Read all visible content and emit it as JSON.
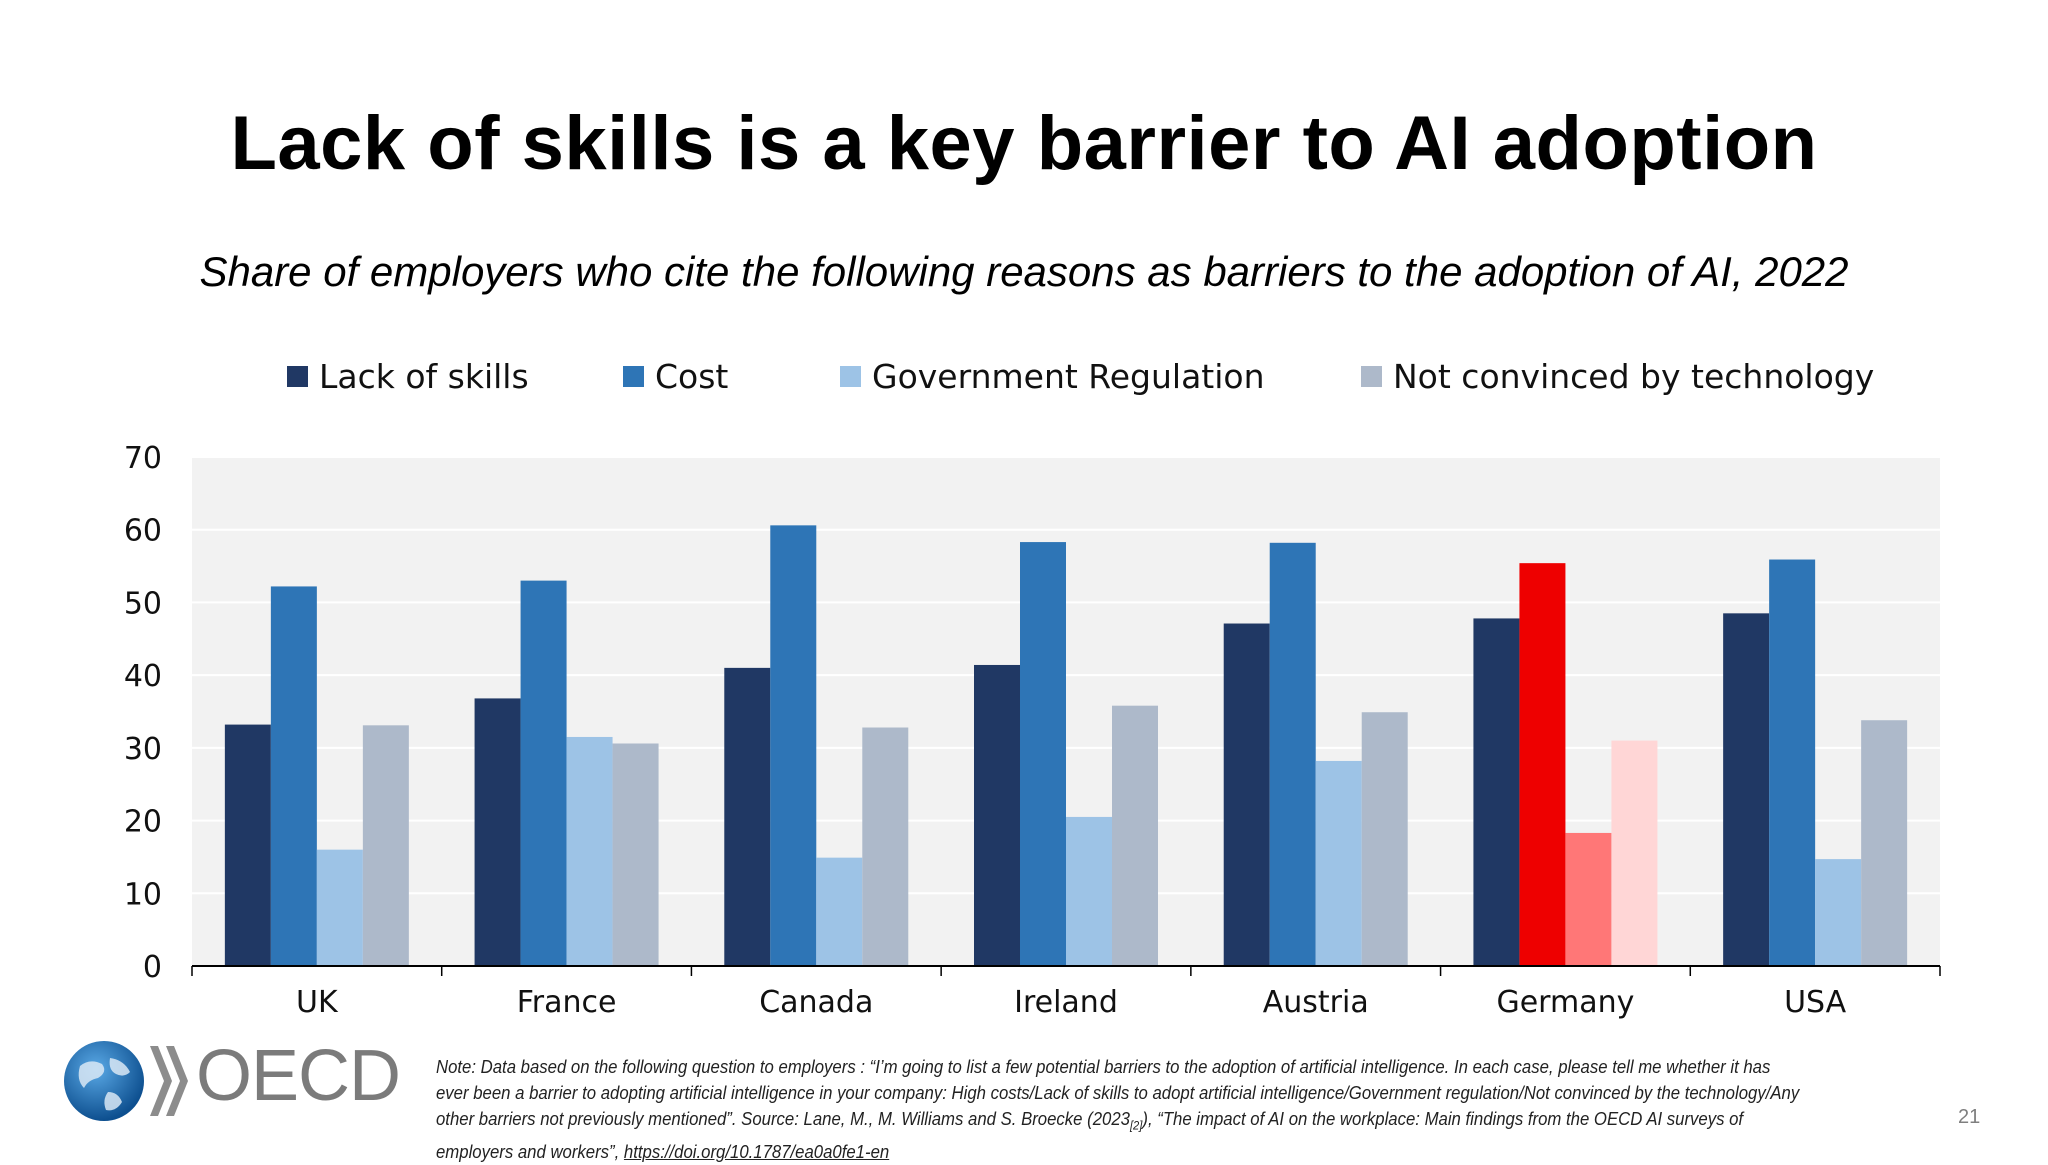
{
  "slide": {
    "title": "Lack of skills is a key barrier to AI adoption",
    "subtitle": "Share of employers who cite the following reasons as barriers to the adoption of AI, 2022",
    "page_number": "21",
    "note": {
      "text": "Note: Data based on the following question to employers : “I’m going to list a few potential barriers to the adoption of artificial intelligence. In each case, please tell me whether it has ever been a barrier to adopting artificial intelligence in your company: High costs/Lack of skills to adopt artificial intelligence/Government regulation/Not convinced by the technology/Any other barriers not previously mentioned”. Source: Lane, M., M. Williams and S. Broecke (2023",
      "ref": "[2]",
      "text_after": "), “The impact of AI on the workplace: Main findings from the OECD AI surveys of employers and workers”, ",
      "link": "https://doi.org/10.1787/ea0a0fe1-en"
    },
    "logo": {
      "text": "OECD",
      "globe_color": "#1a6fb4",
      "chevron_color": "#7f7f7f"
    }
  },
  "chart_data": {
    "type": "bar",
    "title": "Lack of skills is a key barrier to AI adoption",
    "subtitle": "Share of employers who cite the following reasons as barriers to the adoption of AI, 2022",
    "categories": [
      "UK",
      "France",
      "Canada",
      "Ireland",
      "Austria",
      "Germany",
      "USA"
    ],
    "series": [
      {
        "name": "Lack of skills",
        "color": "#203864",
        "values": [
          33.2,
          36.8,
          41.0,
          41.4,
          47.1,
          47.8,
          48.5
        ]
      },
      {
        "name": "Cost",
        "color": "#2e75b6",
        "values": [
          52.2,
          53.0,
          60.6,
          58.3,
          58.2,
          55.4,
          55.9
        ]
      },
      {
        "name": "Government Regulation",
        "color": "#9dc3e6",
        "values": [
          16.0,
          31.5,
          14.9,
          20.5,
          28.2,
          18.3,
          14.7
        ]
      },
      {
        "name": "Not convinced by technology",
        "color": "#adb9ca",
        "values": [
          33.1,
          30.6,
          32.8,
          35.8,
          34.9,
          31.0,
          33.8
        ]
      }
    ],
    "highlight": {
      "category": "Germany",
      "colors": [
        "#203864",
        "#ee0000",
        "#ff7777",
        "#ffd6d6"
      ]
    },
    "ylim": [
      0,
      70
    ],
    "yticks": [
      0,
      10,
      20,
      30,
      40,
      50,
      60,
      70
    ],
    "grid": true,
    "legend_position": "top",
    "plot_background": "#f2f2f2"
  }
}
